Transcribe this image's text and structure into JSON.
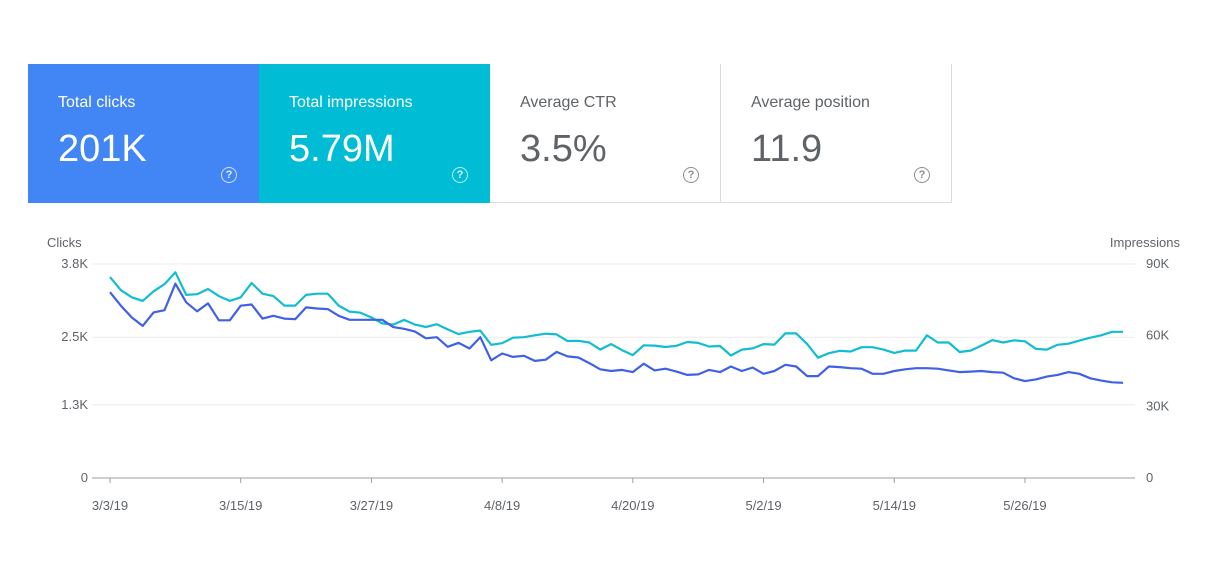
{
  "cards": [
    {
      "label": "Total clicks",
      "value": "201K",
      "color": "#4285f4",
      "selected": true
    },
    {
      "label": "Total impressions",
      "value": "5.79M",
      "color": "#00bcd4",
      "selected": true
    },
    {
      "label": "Average CTR",
      "value": "3.5%",
      "selected": false
    },
    {
      "label": "Average position",
      "value": "11.9",
      "selected": false
    }
  ],
  "help_glyph": "?",
  "chart_data": {
    "type": "line",
    "xlabels": [
      "3/3/19",
      "3/15/19",
      "3/27/19",
      "4/8/19",
      "4/20/19",
      "5/2/19",
      "5/14/19",
      "5/26/19"
    ],
    "left_axis": {
      "title": "Clicks",
      "ticks": [
        "3.8K",
        "2.5K",
        "1.3K",
        "0"
      ],
      "tick_values": [
        3800,
        2500,
        1300,
        0
      ],
      "max": 3800
    },
    "right_axis": {
      "title": "Impressions",
      "ticks": [
        "90K",
        "60K",
        "30K",
        "0"
      ],
      "tick_values": [
        90000,
        60000,
        30000,
        0
      ],
      "max": 90000
    },
    "grid": true,
    "series": [
      {
        "name": "Clicks",
        "axis": "left",
        "color": "#4060e6",
        "values": [
          3300,
          3060,
          2850,
          2700,
          2940,
          2980,
          3450,
          3120,
          2960,
          3100,
          2800,
          2800,
          3060,
          3080,
          2830,
          2880,
          2830,
          2820,
          3030,
          3010,
          3000,
          2880,
          2810,
          2810,
          2810,
          2810,
          2680,
          2650,
          2600,
          2480,
          2500,
          2330,
          2400,
          2300,
          2500,
          2090,
          2210,
          2150,
          2170,
          2080,
          2100,
          2240,
          2160,
          2140,
          2040,
          1930,
          1900,
          1920,
          1880,
          2030,
          1910,
          1940,
          1890,
          1830,
          1840,
          1920,
          1880,
          1980,
          1900,
          1960,
          1850,
          1900,
          2010,
          1980,
          1810,
          1810,
          1980,
          1970,
          1950,
          1940,
          1850,
          1850,
          1900,
          1930,
          1950,
          1950,
          1940,
          1910,
          1880,
          1890,
          1900,
          1880,
          1870,
          1770,
          1720,
          1750,
          1800,
          1830,
          1880,
          1850,
          1770,
          1730,
          1700,
          1690
        ]
      },
      {
        "name": "Impressions",
        "axis": "right",
        "color": "#12bdd1",
        "values": [
          84500,
          79000,
          76000,
          74500,
          78500,
          81500,
          86500,
          77000,
          77300,
          79500,
          76500,
          74500,
          76000,
          82000,
          77500,
          76500,
          72500,
          72500,
          77000,
          77500,
          77500,
          72500,
          70000,
          69500,
          67500,
          65000,
          64500,
          66500,
          64500,
          63500,
          64700,
          62500,
          60500,
          61500,
          62000,
          56000,
          56700,
          59000,
          59200,
          60000,
          60700,
          60400,
          57600,
          57700,
          57000,
          54000,
          56300,
          53800,
          51700,
          55800,
          55700,
          55100,
          55600,
          57200,
          56800,
          55300,
          55500,
          51500,
          54000,
          54500,
          56300,
          56100,
          60800,
          60800,
          56400,
          50600,
          52500,
          53500,
          53200,
          55000,
          55000,
          54000,
          52600,
          53600,
          53600,
          60000,
          57000,
          57000,
          53000,
          53600,
          55700,
          58000,
          57000,
          57900,
          57500,
          54300,
          54000,
          56000,
          56500,
          57800,
          59000,
          60000,
          61500,
          61500
        ]
      }
    ]
  }
}
